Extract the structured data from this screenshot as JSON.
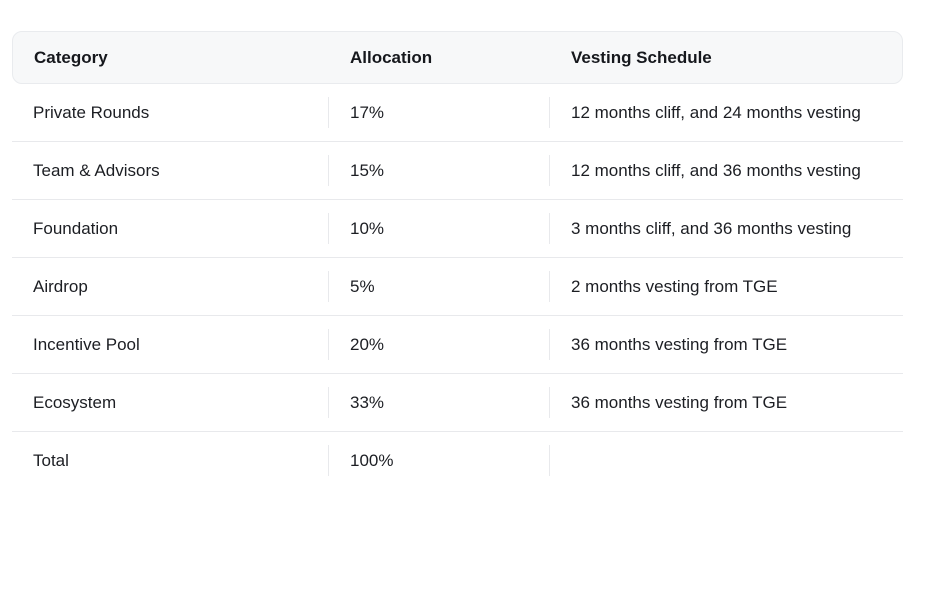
{
  "colors": {
    "header_bg": "#f7f8f9",
    "header_border": "#e9ebee",
    "row_divider": "#e8e9ec",
    "text": "#1c1e23",
    "page_bg": "#ffffff"
  },
  "table": {
    "columns": [
      {
        "id": "category",
        "label": "Category"
      },
      {
        "id": "allocation",
        "label": "Allocation"
      },
      {
        "id": "vesting",
        "label": "Vesting Schedule"
      }
    ],
    "rows": [
      {
        "category": "Private Rounds",
        "allocation": "17%",
        "vesting": "12 months cliff, and 24 months vesting"
      },
      {
        "category": "Team & Advisors",
        "allocation": "15%",
        "vesting": "12 months cliff, and 36 months vesting"
      },
      {
        "category": "Foundation",
        "allocation": "10%",
        "vesting": "3 months cliff, and 36 months vesting"
      },
      {
        "category": "Airdrop",
        "allocation": "5%",
        "vesting": "2 months vesting from TGE"
      },
      {
        "category": "Incentive Pool",
        "allocation": "20%",
        "vesting": "36 months vesting from TGE"
      },
      {
        "category": "Ecosystem",
        "allocation": "33%",
        "vesting": "36 months vesting from TGE"
      },
      {
        "category": "Total",
        "allocation": "100%",
        "vesting": ""
      }
    ]
  },
  "chart_data": {
    "type": "table",
    "columns": [
      "Category",
      "Allocation",
      "Vesting Schedule"
    ],
    "rows": [
      [
        "Private Rounds",
        "17%",
        "12 months cliff, and 24 months vesting"
      ],
      [
        "Team & Advisors",
        "15%",
        "12 months cliff, and 36 months vesting"
      ],
      [
        "Foundation",
        "10%",
        "3 months cliff, and 36 months vesting"
      ],
      [
        "Airdrop",
        "5%",
        "2 months vesting from TGE"
      ],
      [
        "Incentive Pool",
        "20%",
        "36 months vesting from TGE"
      ],
      [
        "Ecosystem",
        "33%",
        "36 months vesting from TGE"
      ],
      [
        "Total",
        "100%",
        ""
      ]
    ]
  }
}
